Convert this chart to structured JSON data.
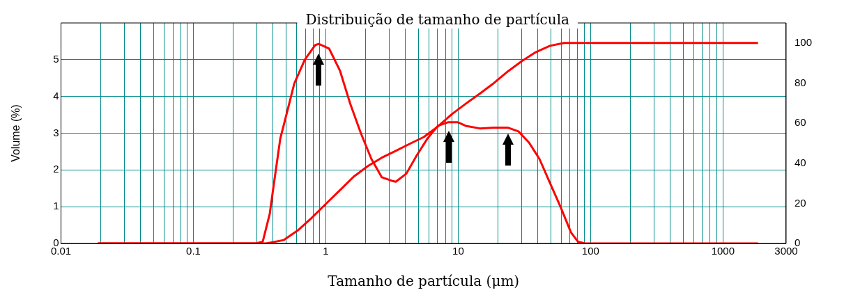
{
  "chart_data": {
    "type": "line",
    "title": "Distribuição de tamanho de partícula",
    "xlabel": "Tamanho de partícula (μm)",
    "ylabel": "Volume (%)",
    "log": "x",
    "grid": true,
    "legend": false,
    "marker": "none",
    "line_style": "solid",
    "xlim": [
      0.01,
      3000
    ],
    "xticks": [
      0.01,
      {
        "value": 0.02,
        "label": null
      },
      {
        "value": 0.03,
        "label": null
      },
      {
        "value": 0.04,
        "label": null
      },
      {
        "value": 0.05,
        "label": null
      },
      {
        "value": 0.06,
        "label": null
      },
      {
        "value": 0.07,
        "label": null
      },
      {
        "value": 0.08,
        "label": null
      },
      {
        "value": 0.09,
        "label": null
      },
      0.1,
      {
        "value": 0.2,
        "label": null
      },
      {
        "value": 0.3,
        "label": null
      },
      {
        "value": 0.4,
        "label": null
      },
      {
        "value": 0.5,
        "label": null
      },
      {
        "value": 0.6,
        "label": null
      },
      {
        "value": 0.7,
        "label": null
      },
      {
        "value": 0.8,
        "label": null
      },
      {
        "value": 0.9,
        "label": null
      },
      1,
      {
        "value": 2,
        "label": null
      },
      {
        "value": 3,
        "label": null
      },
      {
        "value": 4,
        "label": null
      },
      {
        "value": 5,
        "label": null
      },
      {
        "value": 6,
        "label": null
      },
      {
        "value": 7,
        "label": null
      },
      {
        "value": 8,
        "label": null
      },
      {
        "value": 9,
        "label": null
      },
      10,
      {
        "value": 20,
        "label": null
      },
      {
        "value": 30,
        "label": null
      },
      {
        "value": 40,
        "label": null
      },
      {
        "value": 50,
        "label": null
      },
      {
        "value": 60,
        "label": null
      },
      {
        "value": 70,
        "label": null
      },
      {
        "value": 80,
        "label": null
      },
      {
        "value": 90,
        "label": null
      },
      100,
      {
        "value": 200,
        "label": null
      },
      {
        "value": 300,
        "label": null
      },
      {
        "value": 400,
        "label": null
      },
      {
        "value": 500,
        "label": null
      },
      {
        "value": 600,
        "label": null
      },
      {
        "value": 700,
        "label": null
      },
      {
        "value": 800,
        "label": null
      },
      {
        "value": 900,
        "label": null
      },
      1000,
      3000
    ],
    "ylim": [
      0,
      6
    ],
    "yticks": [
      0,
      1,
      2,
      3,
      4,
      5
    ],
    "y2lim": [
      0,
      110
    ],
    "y2ticks": [
      0,
      20,
      40,
      60,
      80,
      100
    ],
    "series": [
      {
        "color": "#ff0000",
        "x": [
          0.019,
          0.296,
          0.334,
          0.377,
          0.401,
          0.453,
          0.512,
          0.578,
          0.694,
          0.833,
          0.885,
          1.06,
          1.28,
          1.53,
          1.84,
          2.21,
          2.65,
          3.18,
          3.38,
          4.06,
          4.87,
          5.85,
          7.02,
          8.43,
          9.9,
          11.4,
          14.6,
          18.6,
          23.8,
          28.5,
          34.2,
          41.1,
          49.3,
          59.2,
          71.1,
          80.3,
          90.7,
          1840
        ],
        "values": [
          0,
          0,
          0.05,
          0.8,
          1.5,
          2.85,
          3.6,
          4.35,
          5.0,
          5.4,
          5.43,
          5.3,
          4.7,
          3.8,
          3.0,
          2.3,
          1.8,
          1.7,
          1.68,
          1.9,
          2.4,
          2.85,
          3.2,
          3.3,
          3.3,
          3.2,
          3.13,
          3.15,
          3.15,
          3.05,
          2.75,
          2.3,
          1.65,
          1.0,
          0.3,
          0.05,
          0,
          0
        ]
      },
      {
        "color": "#ff0000",
        "axis": "y2",
        "x": [
          0.019,
          0.355,
          0.482,
          0.614,
          0.784,
          1,
          1.28,
          1.63,
          2.08,
          2.65,
          3.38,
          4.31,
          5.5,
          7.02,
          8.96,
          11.4,
          14.6,
          18.6,
          23.8,
          30.3,
          38.7,
          49.3,
          63,
          1840
        ],
        "values": [
          0,
          0,
          1.7,
          6.5,
          12.8,
          19.7,
          26.6,
          33.4,
          38.6,
          42.8,
          46.2,
          49.7,
          53.1,
          58.3,
          64.5,
          69.7,
          74.8,
          80,
          85.9,
          91,
          95.5,
          98.6,
          100,
          100
        ]
      }
    ]
  }
}
